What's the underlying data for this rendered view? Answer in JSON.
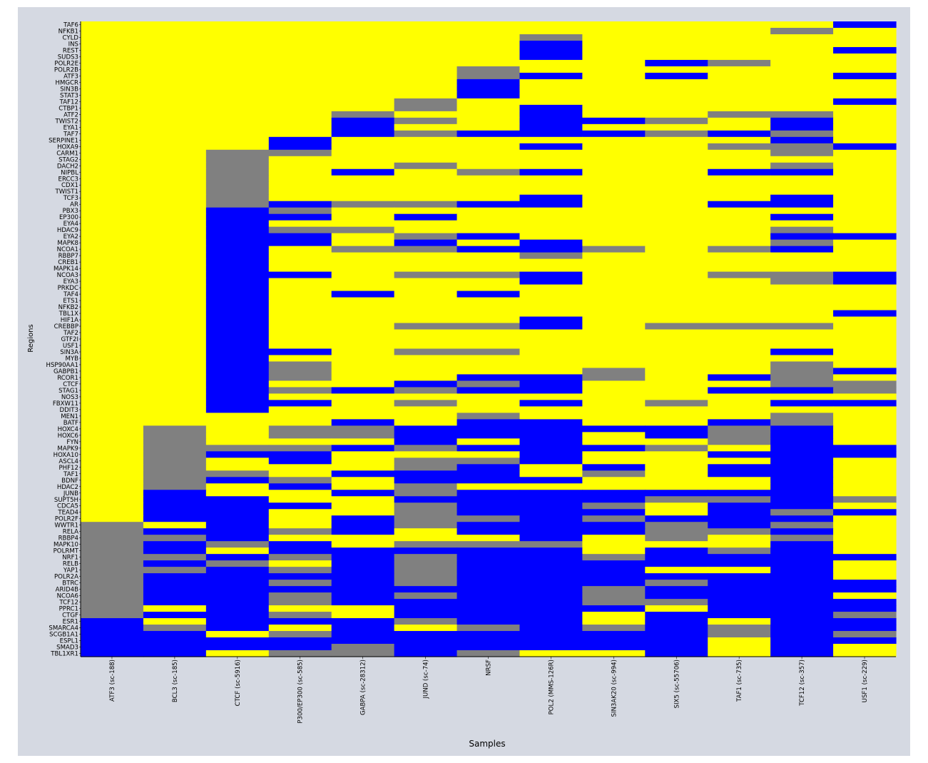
{
  "chart_data": {
    "type": "heatmap",
    "title": "",
    "xlabel": "Samples",
    "ylabel": "Regions",
    "colors": {
      "Y": "#ffff00",
      "B": "#0000ff",
      "G": "#808080",
      "background": "#d5d9e2"
    },
    "samples": [
      "ATF3 (sc-188)",
      "BCL3 (sc-185)",
      "CTCF (sc-5916)",
      "P300/EP300 (sc-585)",
      "GABPA (sc-28312)",
      "JUND (sc-74)",
      "NRSF",
      "POL2 (MMS-126R)",
      "SIN3AK20 (sc-994)",
      "SIX5 (sc-55706)",
      "TAF1 (sc-735)",
      "TCF12 (sc-357)",
      "USF1 (sc-229)"
    ],
    "regions": [
      "TAF6",
      "NFKB1",
      "CYLD",
      "INS",
      "REST",
      "SUDS3",
      "POLR2E",
      "POLR2B",
      "ATF3",
      "HMGCR",
      "SIN3B",
      "STAT3",
      "TAF12",
      "CTBP1",
      "ATF2",
      "TWIST2",
      "EYA1",
      "TAF7",
      "SERPINE1",
      "HOXA9",
      "CARM1",
      "STAG2",
      "DACH2",
      "NIPBL",
      "ERCC3",
      "CDX1",
      "TWIST1",
      "TCF3",
      "AR",
      "PBX3",
      "EP300",
      "EYA4",
      "HDAC9",
      "EYA2",
      "MAPK8",
      "NCOA1",
      "RBBP7",
      "CREB1",
      "MAPK14",
      "NCOA3",
      "EYA3",
      "PRKDC",
      "TAF4",
      "ETS1",
      "NFKB2",
      "TBL1X",
      "HIF1A",
      "CREBBP",
      "TAF2",
      "GTF2I",
      "USF1",
      "SIN3A",
      "MYB",
      "HSP90AA1",
      "GABPB1",
      "RCOR1",
      "CTCF",
      "STAG1",
      "NOS3",
      "FBXW11",
      "DDIT3",
      "MEN1",
      "BATF",
      "HOXC4",
      "HOXC6",
      "FYN",
      "MAPK9",
      "HOXA10",
      "ASCL4",
      "PHF12",
      "TAF1",
      "BDNF",
      "HDAC2",
      "JUNB",
      "SUPT5H",
      "CDCA5",
      "TEAD4",
      "POLR2F",
      "WWTR1",
      "RELA",
      "RBBP4",
      "MAPK10",
      "POLRMT",
      "NRF1",
      "RELB",
      "YAP1",
      "POLR2A",
      "BTRC",
      "ARID4B",
      "NCOA6",
      "TCF12",
      "PPRC1",
      "CTGF",
      "ESR1",
      "SMARCA4",
      "SCGB1A1",
      "ESPL1",
      "SMAD3",
      "TBL1XR1"
    ],
    "matrix": [
      "YYYYYYYYYYYYB",
      "YYYYYYYYYYYGY",
      "YYYYYYYGYYYYY",
      "YYYYYYYBYYYYY",
      "YYYYYYYBYYYYB",
      "YYYYYYYBYYYYY",
      "YYYYYYYYYBGYY",
      "YYYYYYGYYYYYY",
      "YYYYYYGBYBYYB",
      "YYYYYYBYYYYYY",
      "YYYYYYBYYYYYY",
      "YYYYYYBYYYYYY",
      "YYYYYGYYYYYYB",
      "YYYYYGYBYYYYY",
      "YYYYGYYBYYGGY",
      "YYYYBGYBBGYBY",
      "YYYYBYYBYYYBY",
      "YYYYBGBBBGBGY",
      "YYYBYYYYYYYBY",
      "YYYBYYYBYYGGB",
      "YYGGYYYYYYYGY",
      "YYGYYYYYYYYYY",
      "YYGYYGYYYYYGY",
      "YYGYBYGBYYBBY",
      "YYGYYYYYYYYYY",
      "YYGYYYYYYYYYY",
      "YYGYYYYYYYYYY",
      "YYGYYYYBYYYBY",
      "YYGBGGBBYYBBY",
      "YYBGYYYYYYYYY",
      "YYBBYBYYYYYBY",
      "YYBYYYYYYYYYY",
      "YYBGGYYYYYYGY",
      "YYBBYGBYYYYBB",
      "YYBBYBYBYYYGY",
      "YYBYGGBBGYGBY",
      "YYBYYYYGYYYYY",
      "YYBYYYYYYYYYY",
      "YYBYYYYYYYYYY",
      "YYBBYGGBYYGGB",
      "YYBYYYYBYYYGB",
      "YYBYYYYYYYYYY",
      "YYBYBYBYYYYYY",
      "YYBYYYYYYYYYY",
      "YYBYYYYYYYYYY",
      "YYBYYYYYYYYYB",
      "YYBYYYYBYYYYY",
      "YYBYYGGBYGGGY",
      "YYBYYYYYYYYYY",
      "YYBYYYYYYYYYY",
      "YYBYYYYYYYYYY",
      "YYBBYGGYYYYBY",
      "YYBYYYYYYYYYY",
      "YYBGYYYYYYYGY",
      "YYBGYYYYGYYGB",
      "YYBGYYBBGYBGY",
      "YYBYYBGBYYYGG",
      "YYBGBGBBYYBBG",
      "YYBYYYYYYYYYY",
      "YYBBYGYBYGYBB",
      "YYBYYYYYYYYYY",
      "YYYYYYGYYYYGY",
      "YYYYBYBBYYBGY",
      "YGYGGBBBBBGBY",
      "YGYGGBBBYBGBY",
      "YGYYYBYBYYGBY",
      "YGGGBGBBBGYBB",
      "YGBBYYYBYYBBB",
      "YGYBYGGBYYYBY",
      "YGYYYGBYBYBBY",
      "YGGYBBBYGYBBY",
      "YGBGYBBBYYYBY",
      "YGYBYGYYYYYBY",
      "YBYYBGBBBBBBY",
      "YBBYYBBBBGGBG",
      "YBBBYGBBGYBBY",
      "YBBYYGBBBYBGB",
      "YBBYBGGBGBBBY",
      "GYBYBGBBBGBGY",
      "GBBGBYBBBGGBY",
      "GGBYYYYBYGYGY",
      "GBGBYGGGYYYBY",
      "GBYBBBBBYBGBY",
      "GGBGBGBBGBBBB",
      "GBGYBGBBBBBBY",
      "GGBGBGBBBYYBY",
      "GBBBBGBBBBBBY",
      "GBBGBGBBBGBBB",
      "GBBBBBBBGBBBB",
      "GBBGBGBBGBBBY",
      "GBBGBBBBGGBBB",
      "GYBYYBBBBYBBB",
      "GBBGYBBBYBBBG",
      "BYBBBGBBYBYBB",
      "BGBYBYGBGBGBB",
      "BBYGBBBBBBGBG",
      "BBBBBBBBBBYBB",
      "BBBBGBBBBBYBY",
      "BBYGGBGYYBYBY"
    ]
  }
}
